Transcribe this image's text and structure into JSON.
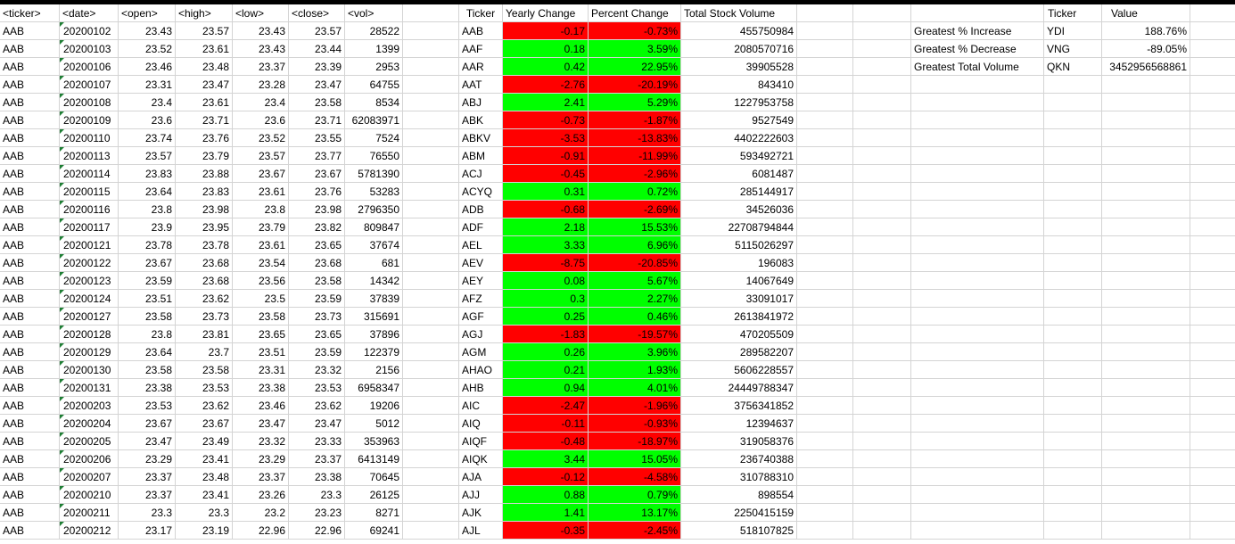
{
  "headers": [
    "<ticker>",
    "<date>",
    "<open>",
    "<high>",
    "<low>",
    "<close>",
    "<vol>",
    "",
    "Ticker",
    "Yearly Change",
    "Percent Change",
    "Total Stock Volume",
    "",
    "",
    "",
    "Ticker",
    "Value",
    ""
  ],
  "colors": {
    "positive": "#00ff00",
    "negative": "#ff0000",
    "gridline": "#d4d4d4"
  },
  "raw_rows": [
    [
      "AAB",
      "20200102",
      "23.43",
      "23.57",
      "23.43",
      "23.57",
      "28522"
    ],
    [
      "AAB",
      "20200103",
      "23.52",
      "23.61",
      "23.43",
      "23.44",
      "1399"
    ],
    [
      "AAB",
      "20200106",
      "23.46",
      "23.48",
      "23.37",
      "23.39",
      "2953"
    ],
    [
      "AAB",
      "20200107",
      "23.31",
      "23.47",
      "23.28",
      "23.47",
      "64755"
    ],
    [
      "AAB",
      "20200108",
      "23.4",
      "23.61",
      "23.4",
      "23.58",
      "8534"
    ],
    [
      "AAB",
      "20200109",
      "23.6",
      "23.71",
      "23.6",
      "23.71",
      "62083971"
    ],
    [
      "AAB",
      "20200110",
      "23.74",
      "23.76",
      "23.52",
      "23.55",
      "7524"
    ],
    [
      "AAB",
      "20200113",
      "23.57",
      "23.79",
      "23.57",
      "23.77",
      "76550"
    ],
    [
      "AAB",
      "20200114",
      "23.83",
      "23.88",
      "23.67",
      "23.67",
      "5781390"
    ],
    [
      "AAB",
      "20200115",
      "23.64",
      "23.83",
      "23.61",
      "23.76",
      "53283"
    ],
    [
      "AAB",
      "20200116",
      "23.8",
      "23.98",
      "23.8",
      "23.98",
      "2796350"
    ],
    [
      "AAB",
      "20200117",
      "23.9",
      "23.95",
      "23.79",
      "23.82",
      "809847"
    ],
    [
      "AAB",
      "20200121",
      "23.78",
      "23.78",
      "23.61",
      "23.65",
      "37674"
    ],
    [
      "AAB",
      "20200122",
      "23.67",
      "23.68",
      "23.54",
      "23.68",
      "681"
    ],
    [
      "AAB",
      "20200123",
      "23.59",
      "23.68",
      "23.56",
      "23.58",
      "14342"
    ],
    [
      "AAB",
      "20200124",
      "23.51",
      "23.62",
      "23.5",
      "23.59",
      "37839"
    ],
    [
      "AAB",
      "20200127",
      "23.58",
      "23.73",
      "23.58",
      "23.73",
      "315691"
    ],
    [
      "AAB",
      "20200128",
      "23.8",
      "23.81",
      "23.65",
      "23.65",
      "37896"
    ],
    [
      "AAB",
      "20200129",
      "23.64",
      "23.7",
      "23.51",
      "23.59",
      "122379"
    ],
    [
      "AAB",
      "20200130",
      "23.58",
      "23.58",
      "23.31",
      "23.32",
      "2156"
    ],
    [
      "AAB",
      "20200131",
      "23.38",
      "23.53",
      "23.38",
      "23.53",
      "6958347"
    ],
    [
      "AAB",
      "20200203",
      "23.53",
      "23.62",
      "23.46",
      "23.62",
      "19206"
    ],
    [
      "AAB",
      "20200204",
      "23.67",
      "23.67",
      "23.47",
      "23.47",
      "5012"
    ],
    [
      "AAB",
      "20200205",
      "23.47",
      "23.49",
      "23.32",
      "23.33",
      "353963"
    ],
    [
      "AAB",
      "20200206",
      "23.29",
      "23.41",
      "23.29",
      "23.37",
      "6413149"
    ],
    [
      "AAB",
      "20200207",
      "23.37",
      "23.48",
      "23.37",
      "23.38",
      "70645"
    ],
    [
      "AAB",
      "20200210",
      "23.37",
      "23.41",
      "23.26",
      "23.3",
      "26125"
    ],
    [
      "AAB",
      "20200211",
      "23.3",
      "23.3",
      "23.2",
      "23.23",
      "8271"
    ],
    [
      "AAB",
      "20200212",
      "23.17",
      "23.19",
      "22.96",
      "22.96",
      "69241"
    ]
  ],
  "summary_rows": [
    {
      "ticker": "AAB",
      "yearly_change": "-0.17",
      "percent_change": "-0.73%",
      "total_volume": "455750984"
    },
    {
      "ticker": "AAF",
      "yearly_change": "0.18",
      "percent_change": "3.59%",
      "total_volume": "2080570716"
    },
    {
      "ticker": "AAR",
      "yearly_change": "0.42",
      "percent_change": "22.95%",
      "total_volume": "39905528"
    },
    {
      "ticker": "AAT",
      "yearly_change": "-2.76",
      "percent_change": "-20.19%",
      "total_volume": "843410"
    },
    {
      "ticker": "ABJ",
      "yearly_change": "2.41",
      "percent_change": "5.29%",
      "total_volume": "1227953758"
    },
    {
      "ticker": "ABK",
      "yearly_change": "-0.73",
      "percent_change": "-1.87%",
      "total_volume": "9527549"
    },
    {
      "ticker": "ABKV",
      "yearly_change": "-3.53",
      "percent_change": "-13.83%",
      "total_volume": "4402222603"
    },
    {
      "ticker": "ABM",
      "yearly_change": "-0.91",
      "percent_change": "-11.99%",
      "total_volume": "593492721"
    },
    {
      "ticker": "ACJ",
      "yearly_change": "-0.45",
      "percent_change": "-2.96%",
      "total_volume": "6081487"
    },
    {
      "ticker": "ACYQ",
      "yearly_change": "0.31",
      "percent_change": "0.72%",
      "total_volume": "285144917"
    },
    {
      "ticker": "ADB",
      "yearly_change": "-0.68",
      "percent_change": "-2.69%",
      "total_volume": "34526036"
    },
    {
      "ticker": "ADF",
      "yearly_change": "2.18",
      "percent_change": "15.53%",
      "total_volume": "22708794844"
    },
    {
      "ticker": "AEL",
      "yearly_change": "3.33",
      "percent_change": "6.96%",
      "total_volume": "5115026297"
    },
    {
      "ticker": "AEV",
      "yearly_change": "-8.75",
      "percent_change": "-20.85%",
      "total_volume": "196083"
    },
    {
      "ticker": "AEY",
      "yearly_change": "0.08",
      "percent_change": "5.67%",
      "total_volume": "14067649"
    },
    {
      "ticker": "AFZ",
      "yearly_change": "0.3",
      "percent_change": "2.27%",
      "total_volume": "33091017"
    },
    {
      "ticker": "AGF",
      "yearly_change": "0.25",
      "percent_change": "0.46%",
      "total_volume": "2613841972"
    },
    {
      "ticker": "AGJ",
      "yearly_change": "-1.83",
      "percent_change": "-19.57%",
      "total_volume": "470205509"
    },
    {
      "ticker": "AGM",
      "yearly_change": "0.26",
      "percent_change": "3.96%",
      "total_volume": "289582207"
    },
    {
      "ticker": "AHAO",
      "yearly_change": "0.21",
      "percent_change": "1.93%",
      "total_volume": "5606228557"
    },
    {
      "ticker": "AHB",
      "yearly_change": "0.94",
      "percent_change": "4.01%",
      "total_volume": "24449788347"
    },
    {
      "ticker": "AIC",
      "yearly_change": "-2.47",
      "percent_change": "-1.96%",
      "total_volume": "3756341852"
    },
    {
      "ticker": "AIQ",
      "yearly_change": "-0.11",
      "percent_change": "-0.93%",
      "total_volume": "12394637"
    },
    {
      "ticker": "AIQF",
      "yearly_change": "-0.48",
      "percent_change": "-18.97%",
      "total_volume": "319058376"
    },
    {
      "ticker": "AIQK",
      "yearly_change": "3.44",
      "percent_change": "15.05%",
      "total_volume": "236740388"
    },
    {
      "ticker": "AJA",
      "yearly_change": "-0.12",
      "percent_change": "-4.58%",
      "total_volume": "310788310"
    },
    {
      "ticker": "AJJ",
      "yearly_change": "0.88",
      "percent_change": "0.79%",
      "total_volume": "898554"
    },
    {
      "ticker": "AJK",
      "yearly_change": "1.41",
      "percent_change": "13.17%",
      "total_volume": "2250415159"
    },
    {
      "ticker": "AJL",
      "yearly_change": "-0.35",
      "percent_change": "-2.45%",
      "total_volume": "518107825"
    }
  ],
  "greatest": [
    {
      "label": "Greatest % Increase",
      "ticker": "YDI",
      "value": "188.76%"
    },
    {
      "label": "Greatest % Decrease",
      "ticker": "VNG",
      "value": "-89.05%"
    },
    {
      "label": "Greatest Total Volume",
      "ticker": "QKN",
      "value": "3452956568861"
    }
  ]
}
